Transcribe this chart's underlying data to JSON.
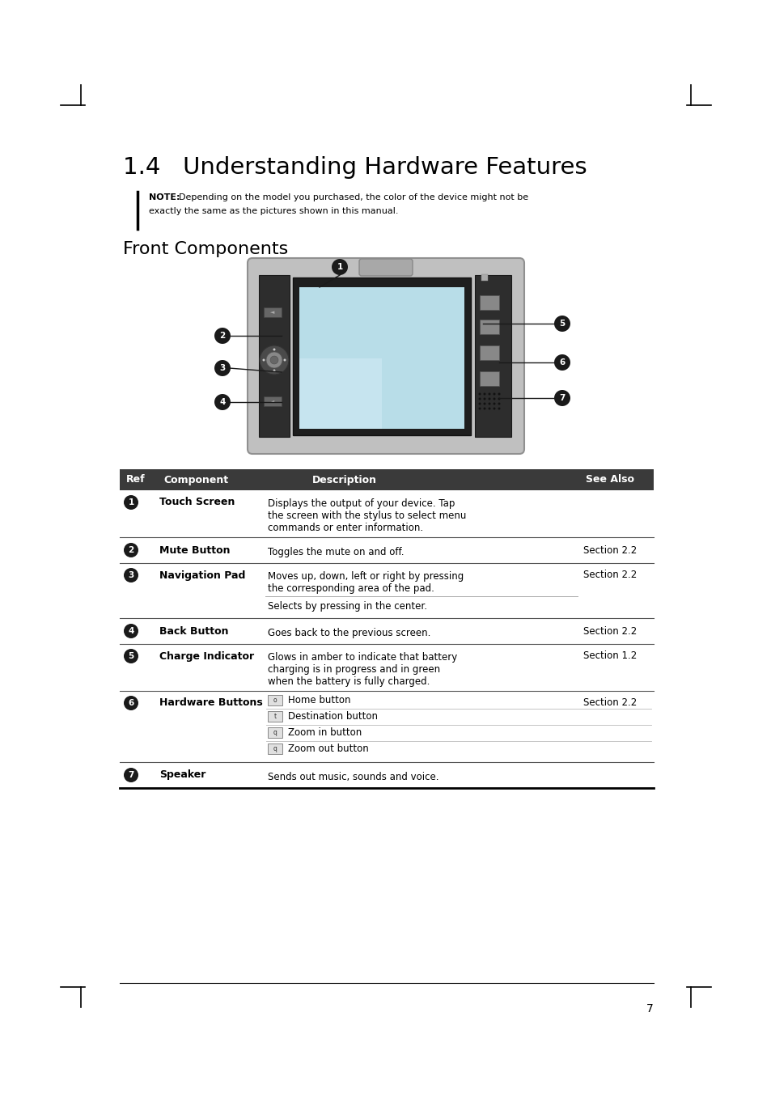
{
  "title": "1.4   Understanding Hardware Features",
  "note_label": "NOTE:",
  "note_text1": "Depending on the model you purchased, the color of the device might not be",
  "note_text2": "exactly the same as the pictures shown in this manual.",
  "subtitle": "Front Components",
  "table_header": [
    "Ref",
    "Component",
    "Description",
    "See Also"
  ],
  "hardware_buttons": [
    "Home button",
    "Destination button",
    "Zoom in button",
    "Zoom out button"
  ],
  "page_number": "7",
  "bg_color": "#ffffff",
  "header_bg": "#3a3a3a",
  "header_fg": "#ffffff"
}
